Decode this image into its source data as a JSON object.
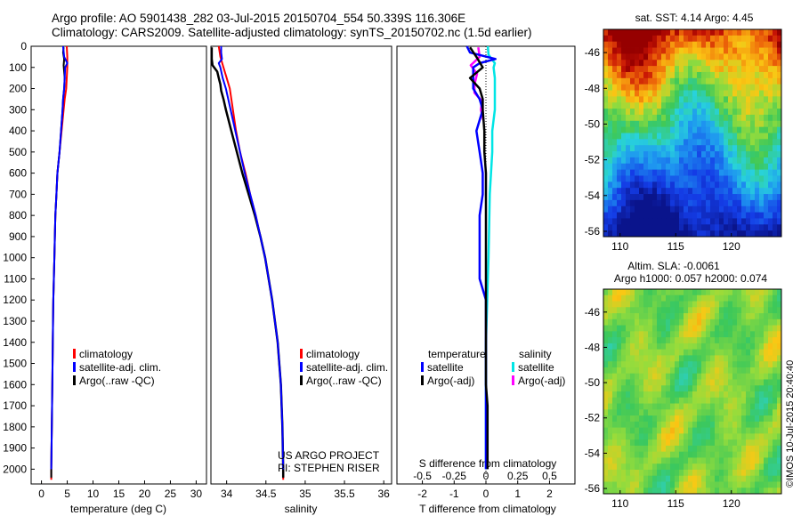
{
  "header": {
    "line1": "Argo profile: AO 5901438_282 03-Jul-2015 20150704_554 50.339S 116.306E",
    "line2": "Climatology: CARS2009. Satellite-adjusted climatology: synTS_20150702.nc (1.5d earlier)"
  },
  "colors": {
    "climatology": "#ff0000",
    "satellite": "#0000ff",
    "argo": "#000000",
    "sal_satellite": "#00e5e5",
    "sal_argo": "#ff00ff"
  },
  "chart_data": [
    {
      "type": "line",
      "id": "temperature",
      "xlabel": "temperature (deg C)",
      "ylabel": "",
      "xlim": [
        -2,
        32
      ],
      "ylim": [
        2070,
        0
      ],
      "xticks": [
        0,
        5,
        10,
        15,
        20,
        25,
        30
      ],
      "yticks": [
        0,
        100,
        200,
        300,
        400,
        500,
        600,
        700,
        800,
        900,
        1000,
        1100,
        1200,
        1300,
        1400,
        1500,
        1600,
        1700,
        1800,
        1900,
        2000
      ],
      "legend": [
        "climatology",
        "satellite-adj. clim.",
        "Argo(..raw -QC)"
      ],
      "series": [
        {
          "name": "climatology",
          "depth": [
            0,
            50,
            100,
            150,
            200,
            250,
            300,
            400,
            500,
            600,
            700,
            800,
            1000,
            1200,
            1400,
            1600,
            1800,
            2000,
            2050
          ],
          "values": [
            4.9,
            5.0,
            5.0,
            4.9,
            4.8,
            4.5,
            4.3,
            3.9,
            3.5,
            3.1,
            2.9,
            2.7,
            2.5,
            2.3,
            2.2,
            2.1,
            2.0,
            1.9,
            1.9
          ]
        },
        {
          "name": "satellite-adj. clim.",
          "depth": [
            0,
            50,
            80,
            100,
            150,
            200,
            250,
            300,
            400,
            500,
            600,
            700,
            800,
            1000,
            1200,
            1400,
            1600,
            1800,
            2000
          ],
          "values": [
            4.2,
            4.4,
            5.0,
            4.6,
            4.5,
            4.4,
            4.2,
            4.1,
            3.8,
            3.5,
            3.1,
            2.9,
            2.7,
            2.5,
            2.3,
            2.2,
            2.1,
            2.0,
            1.9
          ]
        },
        {
          "name": "Argo(..raw -QC)",
          "depth": [
            5,
            30,
            60,
            90,
            120,
            150,
            200,
            250,
            300,
            400,
            500,
            600,
            700,
            800,
            1000,
            1200,
            1400,
            1600,
            1800,
            2000,
            2040
          ],
          "values": [
            4.3,
            4.2,
            4.4,
            4.3,
            4.4,
            4.5,
            4.4,
            4.2,
            4.1,
            3.8,
            3.5,
            3.1,
            2.9,
            2.7,
            2.5,
            2.3,
            2.2,
            2.1,
            2.0,
            1.9,
            1.9
          ]
        }
      ]
    },
    {
      "type": "line",
      "id": "salinity",
      "xlabel": "salinity",
      "ylabel": "",
      "xlim": [
        33.8,
        36.1
      ],
      "ylim": [
        2070,
        0
      ],
      "xticks": [
        34,
        34.5,
        35,
        35.5,
        36
      ],
      "legend": [
        "climatology",
        "satellite-adj. clim.",
        "Argo(..raw -QC)"
      ],
      "annotation": [
        "US ARGO PROJECT",
        "PI: STEPHEN RISER"
      ],
      "series": [
        {
          "name": "climatology",
          "depth": [
            0,
            50,
            100,
            150,
            200,
            300,
            400,
            500,
            600,
            700,
            800,
            900,
            1000,
            1200,
            1400,
            1600,
            1800,
            2000,
            2050
          ],
          "values": [
            33.9,
            33.92,
            33.96,
            34.0,
            34.04,
            34.08,
            34.12,
            34.17,
            34.24,
            34.3,
            34.37,
            34.43,
            34.49,
            34.58,
            34.65,
            34.69,
            34.71,
            34.72,
            34.72
          ]
        },
        {
          "name": "satellite-adj. clim.",
          "depth": [
            0,
            30,
            60,
            80,
            100,
            150,
            200,
            300,
            400,
            500,
            600,
            700,
            800,
            900,
            1000,
            1200,
            1400,
            1600,
            1800,
            2000
          ],
          "values": [
            33.93,
            33.93,
            33.94,
            33.9,
            33.92,
            33.95,
            33.99,
            34.05,
            34.11,
            34.17,
            34.23,
            34.3,
            34.37,
            34.43,
            34.49,
            34.58,
            34.65,
            34.69,
            34.71,
            34.72
          ]
        },
        {
          "name": "Argo(..raw -QC)",
          "depth": [
            5,
            30,
            60,
            90,
            120,
            150,
            180,
            210,
            250,
            300,
            400,
            500,
            600,
            700,
            800,
            900,
            1000,
            1200,
            1400,
            1600,
            1800,
            2000,
            2040
          ],
          "values": [
            33.81,
            33.81,
            33.81,
            33.82,
            33.88,
            33.9,
            33.92,
            33.93,
            33.96,
            33.99,
            34.06,
            34.13,
            34.2,
            34.28,
            34.36,
            34.43,
            34.49,
            34.58,
            34.65,
            34.69,
            34.71,
            34.72,
            34.72
          ]
        }
      ]
    },
    {
      "type": "line",
      "id": "differences",
      "xlabel": "T difference from climatology",
      "xlabel_top": "S difference from climatology",
      "xlim": [
        -2.8,
        2.8
      ],
      "ylim": [
        2070,
        0
      ],
      "xticks_T": [
        -2,
        -1,
        0,
        1,
        2
      ],
      "xticks_S": [
        -0.5,
        -0.25,
        0,
        0.25,
        0.5
      ],
      "legend_temperature_title": "temperature",
      "legend_salinity_title": "salinity",
      "legend": [
        "satellite",
        "Argo(-adj)",
        "satellite",
        "Argo(-adj)"
      ],
      "series": [
        {
          "name": "satellite",
          "group": "temperature",
          "depth": [
            0,
            30,
            60,
            80,
            100,
            150,
            200,
            250,
            300,
            400,
            500,
            600,
            700,
            800,
            900,
            1000,
            1100,
            1200,
            1400,
            1600,
            1800,
            2000
          ],
          "values": [
            -0.6,
            -0.5,
            0.3,
            -0.2,
            -0.4,
            -0.4,
            -0.4,
            -0.2,
            -0.1,
            -0.3,
            -0.2,
            -0.1,
            -0.1,
            -0.2,
            -0.2,
            -0.2,
            -0.2,
            0.0,
            0.0,
            0.0,
            0.0,
            0.0
          ]
        },
        {
          "name": "Argo(-adj)",
          "group": "temperature",
          "depth": [
            5,
            50,
            100,
            150,
            200,
            250,
            300,
            400,
            500,
            600,
            800,
            1000,
            1200,
            1400,
            1600,
            1700,
            1800,
            1900,
            2000
          ],
          "values": [
            -0.5,
            -0.3,
            -0.1,
            -0.5,
            -0.2,
            -0.1,
            -0.1,
            -0.05,
            -0.05,
            0.0,
            0.0,
            0.0,
            0.0,
            0.0,
            0.0,
            0.05,
            0.05,
            0.05,
            0.05
          ]
        },
        {
          "name": "satellite",
          "group": "salinity",
          "depth": [
            0,
            40,
            80,
            100,
            150,
            200,
            250,
            300,
            400,
            500,
            600,
            700,
            1000,
            1400,
            1800,
            2000
          ],
          "values": [
            0.015,
            0.02,
            0.07,
            0.06,
            0.07,
            0.07,
            0.07,
            0.07,
            0.05,
            0.05,
            0.04,
            0.03,
            0.02,
            0.0,
            0.0,
            0.0
          ]
        },
        {
          "name": "Argo(-adj)",
          "group": "salinity",
          "depth": [
            5,
            50,
            90,
            130,
            180,
            220,
            260,
            300,
            350
          ],
          "values": [
            -0.06,
            -0.05,
            -0.12,
            -0.07,
            -0.09,
            -0.09,
            -0.03,
            -0.04,
            -0.02
          ]
        }
      ]
    },
    {
      "type": "heatmap",
      "id": "sst-map",
      "title": "sat. SST: 4.14  Argo: 4.45",
      "xticks": [
        110,
        115,
        120
      ],
      "yticks": [
        -46,
        -48,
        -50,
        -52,
        -54,
        -56
      ],
      "xlim": [
        108.5,
        124.5
      ],
      "ylim": [
        -56.3,
        -44.7
      ]
    },
    {
      "type": "heatmap",
      "id": "sla-map",
      "title_line1": "Altim. SLA: -0.0061",
      "title_line2": "Argo h1000: 0.057 h2000: 0.074",
      "xticks": [
        110,
        115,
        120
      ],
      "yticks": [
        -46,
        -48,
        -50,
        -52,
        -54,
        -56
      ],
      "xlim": [
        108.5,
        124.5
      ],
      "ylim": [
        -56.3,
        -44.7
      ]
    }
  ],
  "footer": {
    "credit": "©IMOS 10-Jul-2015 20:40:40"
  }
}
